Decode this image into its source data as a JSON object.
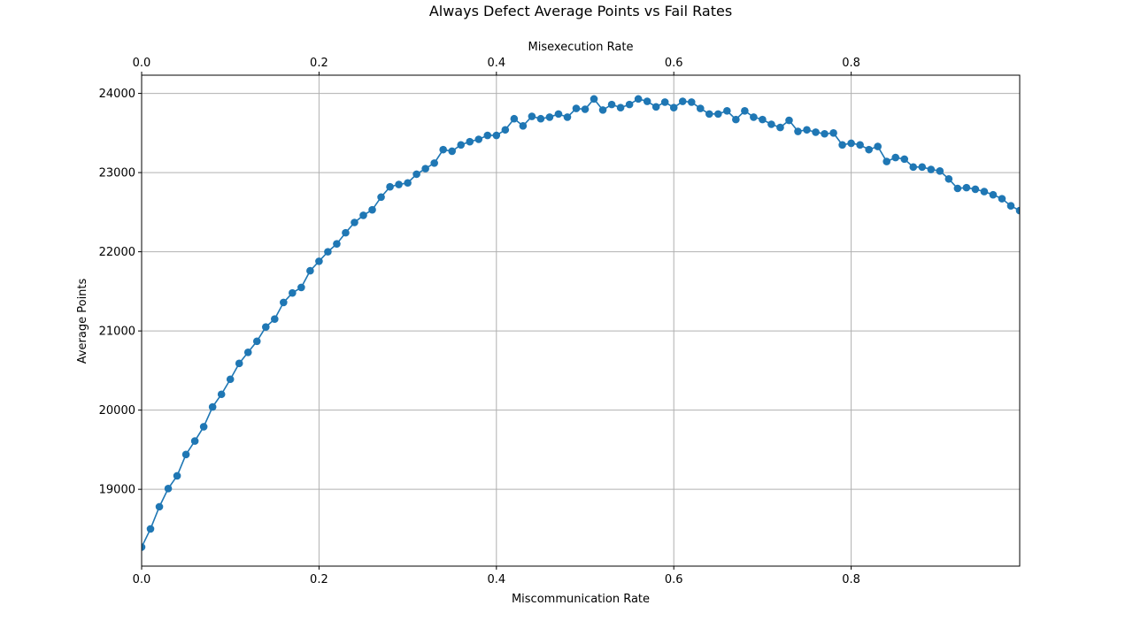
{
  "chart_data": {
    "type": "line",
    "title": "Always Defect Average Points vs Fail Rates",
    "xlabel": "Miscommunication Rate",
    "x2label": "Misexecution Rate",
    "ylabel": "Average Points",
    "xlim": [
      0,
      0.99
    ],
    "ylim": [
      18030,
      24230
    ],
    "x_ticks": [
      0.0,
      0.2,
      0.4,
      0.6,
      0.8
    ],
    "x_tick_labels": [
      "0.0",
      "0.2",
      "0.4",
      "0.6",
      "0.8"
    ],
    "x2_ticks": [
      0.0,
      0.2,
      0.4,
      0.6,
      0.8
    ],
    "x2_tick_labels": [
      "0.0",
      "0.2",
      "0.4",
      "0.6",
      "0.8"
    ],
    "y_ticks": [
      19000,
      20000,
      21000,
      22000,
      23000,
      24000
    ],
    "y_tick_labels": [
      "19000",
      "20000",
      "21000",
      "22000",
      "23000",
      "24000"
    ],
    "grid": true,
    "marker": "circle",
    "color": "#1f77b4",
    "series": [
      {
        "x": [
          0.0,
          0.01,
          0.02,
          0.03,
          0.04,
          0.05,
          0.06,
          0.07,
          0.08,
          0.09,
          0.1,
          0.11,
          0.12,
          0.13,
          0.14,
          0.15,
          0.16,
          0.17,
          0.18,
          0.19,
          0.2,
          0.21,
          0.22,
          0.23,
          0.24,
          0.25,
          0.26,
          0.27,
          0.28,
          0.29,
          0.3,
          0.31,
          0.32,
          0.33,
          0.34,
          0.35,
          0.36,
          0.37,
          0.38,
          0.39,
          0.4,
          0.41,
          0.42,
          0.43,
          0.44,
          0.45,
          0.46,
          0.47,
          0.48,
          0.49,
          0.5,
          0.51,
          0.52,
          0.53,
          0.54,
          0.55,
          0.56,
          0.57,
          0.58,
          0.59,
          0.6,
          0.61,
          0.62,
          0.63,
          0.64,
          0.65,
          0.66,
          0.67,
          0.68,
          0.69,
          0.7,
          0.71,
          0.72,
          0.73,
          0.74,
          0.75,
          0.76,
          0.77,
          0.78,
          0.79,
          0.8,
          0.81,
          0.82,
          0.83,
          0.84,
          0.85,
          0.86,
          0.87,
          0.88,
          0.89,
          0.9,
          0.91,
          0.92,
          0.93,
          0.94,
          0.95,
          0.96,
          0.97,
          0.98,
          0.99
        ],
        "values": [
          18270,
          18500,
          18780,
          19010,
          19170,
          19440,
          19610,
          19790,
          20040,
          20200,
          20390,
          20590,
          20730,
          20870,
          21050,
          21150,
          21360,
          21480,
          21550,
          21760,
          21880,
          22000,
          22100,
          22240,
          22370,
          22460,
          22530,
          22690,
          22820,
          22850,
          22870,
          22980,
          23050,
          23120,
          23290,
          23270,
          23350,
          23390,
          23420,
          23470,
          23470,
          23540,
          23680,
          23590,
          23710,
          23680,
          23700,
          23740,
          23700,
          23810,
          23800,
          23930,
          23790,
          23860,
          23820,
          23860,
          23930,
          23900,
          23830,
          23890,
          23820,
          23900,
          23890,
          23810,
          23740,
          23740,
          23780,
          23670,
          23780,
          23700,
          23670,
          23610,
          23570,
          23660,
          23520,
          23540,
          23510,
          23490,
          23500,
          23350,
          23370,
          23350,
          23290,
          23330,
          23140,
          23190,
          23170,
          23070,
          23070,
          23040,
          23020,
          22920,
          22800,
          22810,
          22790,
          22760,
          22720,
          22670,
          22580,
          22520
        ]
      }
    ]
  }
}
